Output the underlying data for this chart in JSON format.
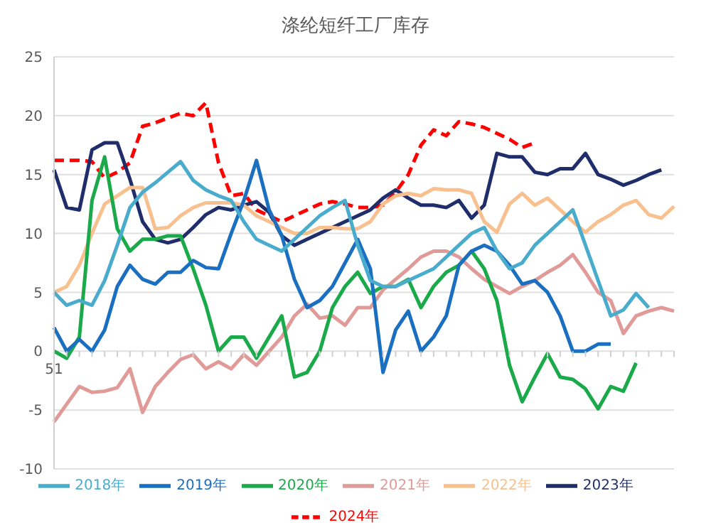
{
  "chart_data": {
    "type": "line",
    "title": "涤纶短纤工厂库存",
    "categories": [
      "51",
      null,
      null,
      null,
      null,
      null,
      null,
      null,
      null,
      null,
      null,
      null,
      null,
      null,
      null,
      null,
      null,
      null,
      null,
      null,
      null,
      null,
      null,
      null,
      null,
      null,
      null,
      null,
      null,
      null,
      null,
      null,
      null,
      null,
      null,
      null,
      null,
      null,
      null,
      null,
      null,
      null,
      null,
      null,
      null,
      null,
      null,
      null,
      null,
      null
    ],
    "ylim": [
      -10,
      25
    ],
    "yticks": [
      -10,
      -5,
      0,
      5,
      10,
      15,
      20,
      25
    ],
    "grid": "y",
    "legend": "bottom",
    "marker": "none",
    "series": [
      {
        "name": "2024年",
        "color": "#ff0000",
        "line_style": "dashed",
        "values": [
          16.2,
          16.2,
          16.2,
          16.1,
          14.7,
          15.2,
          16,
          19.1,
          19.4,
          19.8,
          20.2,
          20,
          21.1,
          16,
          13.2,
          13.4,
          12,
          11.5,
          11,
          11.5,
          12,
          12.5,
          12.7,
          12.5,
          12.2,
          12.2,
          12.4,
          13.5,
          15,
          17.5,
          18.8,
          18.3,
          19.5,
          19.3,
          19,
          18.5,
          18,
          17.3,
          17.7,
          null,
          null,
          null,
          null,
          null,
          null,
          null,
          null,
          null,
          null,
          null
        ]
      },
      {
        "name": "2023年",
        "color": "#1f2d6b",
        "line_style": "solid",
        "values": [
          15.4,
          12.2,
          12,
          17.1,
          17.7,
          17.7,
          14.6,
          11,
          9.5,
          9.2,
          9.5,
          10.5,
          11.6,
          12.2,
          12,
          12.4,
          12.7,
          11.8,
          9.8,
          9,
          9.5,
          10,
          10.5,
          11,
          11.5,
          12,
          13,
          13.7,
          13,
          12.4,
          12.4,
          12.2,
          12.8,
          11.3,
          12.4,
          16.8,
          16.5,
          16.5,
          15.2,
          15,
          15.5,
          15.5,
          16.8,
          15,
          14.6,
          14.1,
          14.5,
          15,
          15.4,
          null
        ]
      },
      {
        "name": "2022年",
        "color": "#f8c08f",
        "line_style": "solid",
        "values": [
          5,
          5.5,
          7.3,
          10,
          12.5,
          13.2,
          13.9,
          13.9,
          10.4,
          10.5,
          11.5,
          12.2,
          12.6,
          12.6,
          12.6,
          12.4,
          11.5,
          11,
          10.5,
          10,
          10,
          10.5,
          10.5,
          10.4,
          10.4,
          11,
          12.5,
          13.2,
          13.4,
          13.2,
          13.8,
          13.7,
          13.7,
          13.4,
          11,
          10.1,
          12.5,
          13.4,
          12.4,
          13,
          12,
          11,
          10.1,
          11,
          11.6,
          12.4,
          12.8,
          11.6,
          11.3,
          12.3
        ]
      },
      {
        "name": "2021年",
        "color": "#e09a98",
        "line_style": "solid",
        "values": [
          -6,
          -4.5,
          -3,
          -3.5,
          -3.4,
          -3.1,
          -1.5,
          -5.2,
          -3,
          -1.8,
          -0.7,
          -0.3,
          -1.5,
          -0.9,
          -1.5,
          -0.3,
          -1.2,
          0,
          1.2,
          3,
          4,
          2.8,
          3,
          2.2,
          3.7,
          3.7,
          5.2,
          6.1,
          7,
          8,
          8.5,
          8.5,
          8,
          7,
          6.1,
          5.5,
          4.9,
          5.5,
          6,
          6.7,
          7.3,
          8.2,
          6.7,
          5,
          4.3,
          1.5,
          3,
          3.4,
          3.7,
          3.4
        ]
      },
      {
        "name": "2020年",
        "color": "#1aaa4a",
        "line_style": "solid",
        "values": [
          0,
          -0.6,
          1.2,
          12.8,
          16.5,
          10.4,
          8.5,
          9.5,
          9.5,
          9.8,
          9.8,
          7,
          3.9,
          0,
          1.2,
          1.2,
          -0.6,
          1.2,
          3,
          -2.2,
          -1.8,
          0,
          3.7,
          5.5,
          6.7,
          4.9,
          5.5,
          5.5,
          6.1,
          3.7,
          5.5,
          6.7,
          7.3,
          8.5,
          7,
          4.3,
          -1.2,
          -4.3,
          -2.2,
          -0.2,
          -2.2,
          -2.4,
          -3.2,
          -4.9,
          -3,
          -3.4,
          -1,
          null,
          null,
          null
        ]
      },
      {
        "name": "2019年",
        "color": "#1a6fc0",
        "line_style": "solid",
        "values": [
          2,
          0,
          1,
          0,
          1.8,
          5.5,
          7.3,
          6.1,
          5.7,
          6.7,
          6.7,
          7.7,
          7.1,
          7,
          10,
          12.8,
          16.2,
          12,
          9.8,
          6.1,
          3.7,
          4.3,
          5.5,
          7.5,
          9.5,
          7,
          -1.8,
          1.8,
          3.4,
          0,
          1.2,
          3,
          7.3,
          8.5,
          9,
          8.5,
          7.3,
          5.7,
          6,
          5,
          3,
          0,
          0,
          0.6,
          0.6,
          null,
          null,
          null,
          null,
          null
        ]
      },
      {
        "name": "2018年",
        "color": "#4aaccc",
        "line_style": "solid",
        "values": [
          5,
          3.9,
          4.3,
          3.9,
          6,
          9,
          12.2,
          13.5,
          14.3,
          15.2,
          16.1,
          14.5,
          13.7,
          13.2,
          12.8,
          11,
          9.5,
          9,
          8.5,
          9.5,
          10.5,
          11.5,
          12.2,
          12.8,
          9,
          6,
          5.5,
          5.5,
          6,
          6.5,
          7,
          8,
          9,
          10,
          10.5,
          8.5,
          7,
          7.5,
          9,
          10,
          11,
          12,
          9,
          6,
          3,
          3.5,
          4.9,
          3.7,
          null,
          null
        ]
      }
    ]
  }
}
